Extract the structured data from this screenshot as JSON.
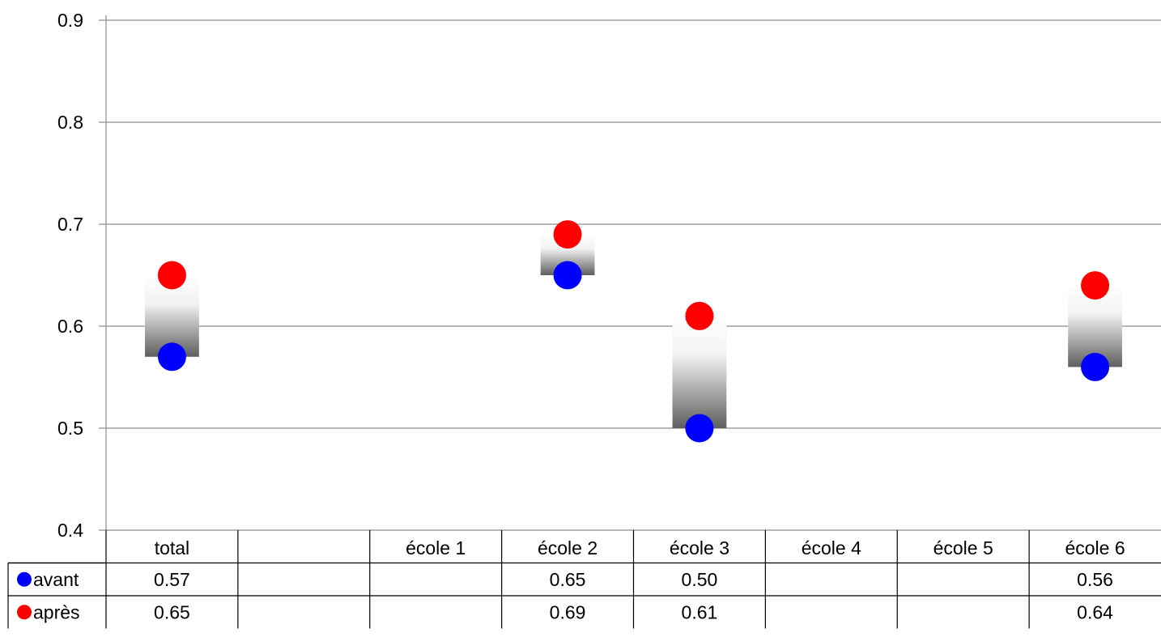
{
  "chart_data": {
    "type": "scatter",
    "categories": [
      "total",
      "",
      "école 1",
      "école 2",
      "école 3",
      "école 4",
      "école 5",
      "école 6"
    ],
    "series": [
      {
        "name": "avant",
        "color": "#0000ff",
        "values": [
          0.57,
          null,
          null,
          0.65,
          0.5,
          null,
          null,
          0.56
        ]
      },
      {
        "name": "après",
        "color": "#ff0000",
        "values": [
          0.65,
          null,
          null,
          0.69,
          0.61,
          null,
          null,
          0.64
        ]
      }
    ],
    "table": {
      "rows": [
        {
          "label": "avant",
          "cells": [
            "0.57",
            "",
            "",
            "0.65",
            "0.50",
            "",
            "",
            "0.56"
          ]
        },
        {
          "label": "après",
          "cells": [
            "0.65",
            "",
            "",
            "0.69",
            "0.61",
            "",
            "",
            "0.64"
          ]
        }
      ]
    },
    "ylim": [
      0.4,
      0.9
    ],
    "yticks": [
      "0.4",
      "0.5",
      "0.6",
      "0.7",
      "0.8",
      "0.9"
    ],
    "grid": true,
    "legend": "data-table"
  }
}
